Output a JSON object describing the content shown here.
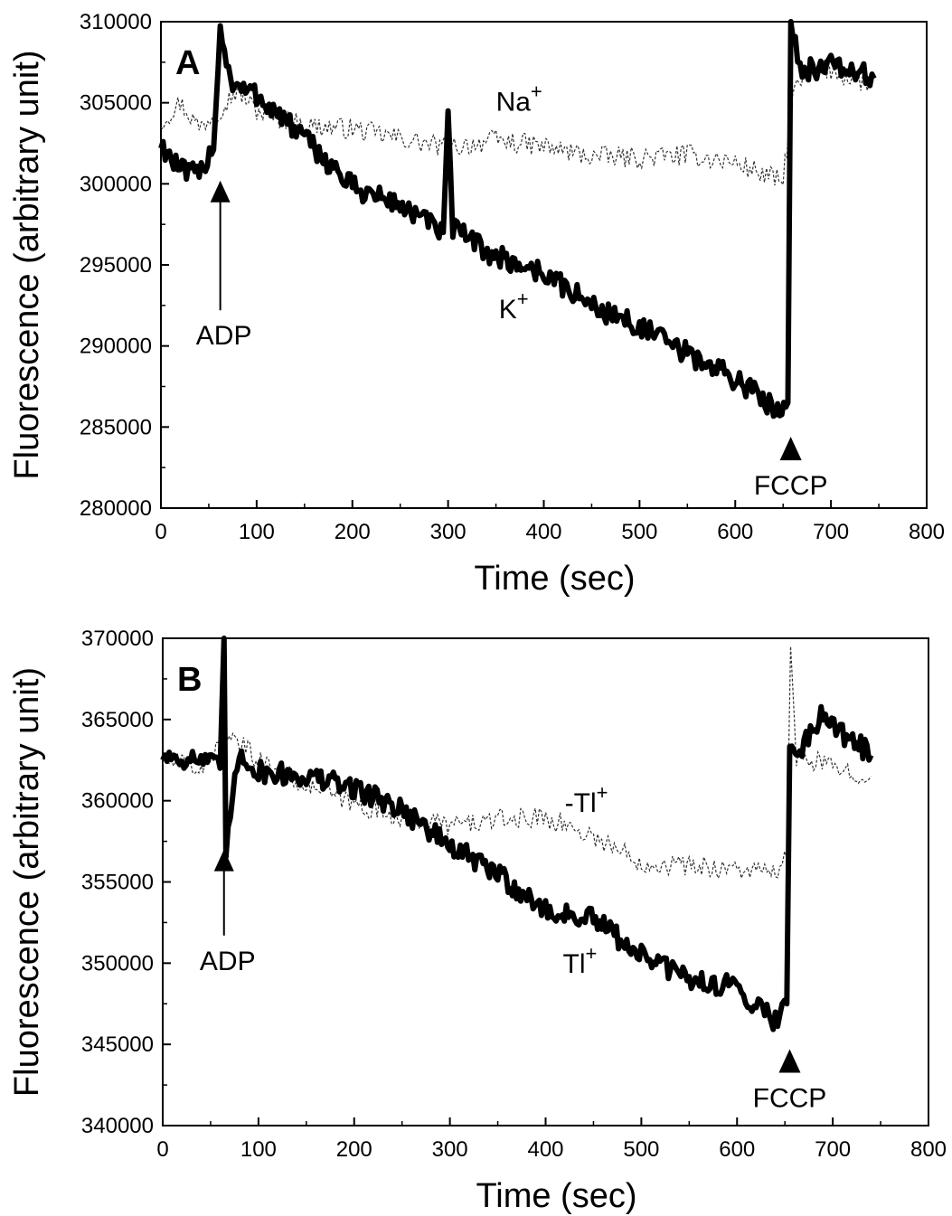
{
  "chart_data": [
    {
      "panel": "A",
      "type": "line",
      "xlabel": "Time (sec)",
      "ylabel": "Fluorescence (arbitrary unit)",
      "xlim": [
        0,
        800
      ],
      "ylim": [
        280000,
        310000
      ],
      "xticks": [
        0,
        100,
        200,
        300,
        400,
        500,
        600,
        700,
        800
      ],
      "yticks": [
        280000,
        285000,
        290000,
        295000,
        300000,
        305000,
        310000
      ],
      "series": [
        {
          "name": "Na+",
          "style": "dashed-thin",
          "color": "#333333",
          "points": [
            [
              0,
              303800
            ],
            [
              20,
              305000
            ],
            [
              40,
              303500
            ],
            [
              60,
              304500
            ],
            [
              80,
              305800
            ],
            [
              100,
              304500
            ],
            [
              150,
              303600
            ],
            [
              200,
              303400
            ],
            [
              250,
              302800
            ],
            [
              300,
              302200
            ],
            [
              350,
              302700
            ],
            [
              400,
              302300
            ],
            [
              450,
              301700
            ],
            [
              500,
              301600
            ],
            [
              550,
              301800
            ],
            [
              600,
              301300
            ],
            [
              650,
              300100
            ],
            [
              660,
              305500
            ],
            [
              680,
              307200
            ],
            [
              700,
              307000
            ],
            [
              720,
              306500
            ],
            [
              740,
              306200
            ]
          ]
        },
        {
          "name": "K+",
          "style": "solid-thick",
          "color": "#000000",
          "points": [
            [
              0,
              302500
            ],
            [
              20,
              300800
            ],
            [
              40,
              300500
            ],
            [
              55,
              302500
            ],
            [
              62,
              309500
            ],
            [
              75,
              306000
            ],
            [
              100,
              305500
            ],
            [
              150,
              302800
            ],
            [
              200,
              299800
            ],
            [
              250,
              298700
            ],
            [
              295,
              297000
            ],
            [
              300,
              304500
            ],
            [
              305,
              297200
            ],
            [
              350,
              295500
            ],
            [
              400,
              294500
            ],
            [
              450,
              292500
            ],
            [
              500,
              291200
            ],
            [
              550,
              289500
            ],
            [
              600,
              288000
            ],
            [
              640,
              286200
            ],
            [
              655,
              286500
            ],
            [
              658,
              310000
            ],
            [
              670,
              307000
            ],
            [
              700,
              307300
            ],
            [
              730,
              306800
            ],
            [
              745,
              306500
            ]
          ]
        }
      ],
      "annotations": {
        "panel_letter": "A",
        "adp_label": "ADP",
        "fccp_label": "FCCP",
        "series1_label": "Na",
        "series1_sup": "+",
        "series2_label": "K",
        "series2_sup": "+",
        "adp_x": 62,
        "fccp_x": 658
      }
    },
    {
      "panel": "B",
      "type": "line",
      "xlabel": "Time (sec)",
      "ylabel": "Fluorescence (arbitrary unit)",
      "xlim": [
        0,
        800
      ],
      "ylim": [
        340000,
        370000
      ],
      "xticks": [
        0,
        100,
        200,
        300,
        400,
        500,
        600,
        700,
        800
      ],
      "yticks": [
        340000,
        345000,
        350000,
        355000,
        360000,
        365000,
        370000
      ],
      "series": [
        {
          "name": "-Tl+",
          "style": "dashed-thin",
          "color": "#333333",
          "points": [
            [
              0,
              362500
            ],
            [
              40,
              362000
            ],
            [
              60,
              363500
            ],
            [
              80,
              363500
            ],
            [
              100,
              362500
            ],
            [
              150,
              361000
            ],
            [
              200,
              359800
            ],
            [
              250,
              359000
            ],
            [
              300,
              358500
            ],
            [
              350,
              358800
            ],
            [
              400,
              359000
            ],
            [
              450,
              357800
            ],
            [
              500,
              356200
            ],
            [
              550,
              356000
            ],
            [
              600,
              355800
            ],
            [
              640,
              355500
            ],
            [
              652,
              356500
            ],
            [
              656,
              369500
            ],
            [
              662,
              362500
            ],
            [
              680,
              362500
            ],
            [
              700,
              362000
            ],
            [
              720,
              361800
            ],
            [
              740,
              361500
            ]
          ]
        },
        {
          "name": "Tl+",
          "style": "solid-thick",
          "color": "#000000",
          "points": [
            [
              0,
              362800
            ],
            [
              40,
              362500
            ],
            [
              60,
              362000
            ],
            [
              64,
              370000
            ],
            [
              66,
              357000
            ],
            [
              80,
              363000
            ],
            [
              100,
              361800
            ],
            [
              150,
              361500
            ],
            [
              200,
              360800
            ],
            [
              250,
              359500
            ],
            [
              300,
              357200
            ],
            [
              350,
              355500
            ],
            [
              400,
              353200
            ],
            [
              450,
              352700
            ],
            [
              500,
              350500
            ],
            [
              550,
              349000
            ],
            [
              600,
              348500
            ],
            [
              640,
              346500
            ],
            [
              652,
              347500
            ],
            [
              655,
              363000
            ],
            [
              670,
              363500
            ],
            [
              690,
              365500
            ],
            [
              710,
              364200
            ],
            [
              740,
              362800
            ]
          ]
        }
      ],
      "annotations": {
        "panel_letter": "B",
        "adp_label": "ADP",
        "fccp_label": "FCCP",
        "series1_label": "-Tl",
        "series1_sup": "+",
        "series2_label": "Tl",
        "series2_sup": "+",
        "adp_x": 64,
        "fccp_x": 655
      }
    }
  ]
}
